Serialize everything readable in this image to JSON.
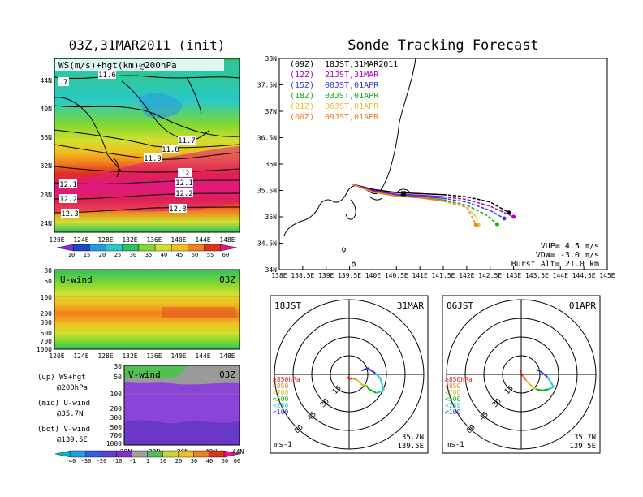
{
  "titles": {
    "left": "03Z,31MAR2011 (init)",
    "right": "Sonde Tracking Forecast"
  },
  "panel_ws": {
    "label": "WS(m/s)+hgt(km)@200hPa",
    "ylabels": [
      "44N",
      "40N",
      "36N",
      "32N",
      "28N",
      "24N"
    ],
    "xlabels": [
      "120E",
      "124E",
      "128E",
      "132E",
      "136E",
      "140E",
      "144E",
      "148E"
    ],
    "contours": [
      "11.6",
      ".7",
      "11.7",
      "11.8",
      "11.9",
      "12",
      "12.1",
      "12.1",
      "12.2",
      "12.2",
      "12.3",
      "12.3"
    ]
  },
  "colorbar_ws": {
    "labels": [
      "10",
      "15",
      "20",
      "25",
      "30",
      "35",
      "40",
      "45",
      "50",
      "55",
      "60"
    ]
  },
  "panel_u": {
    "label": "U-wind",
    "time": "03Z",
    "ylabels": [
      "30",
      "50",
      "100",
      "200",
      "300",
      "500",
      "700",
      "1000"
    ],
    "xlabels": [
      "120E",
      "124E",
      "128E",
      "132E",
      "136E",
      "140E",
      "144E",
      "148E"
    ]
  },
  "panel_v": {
    "label": "V-wind",
    "time": "03Z",
    "ylabels": [
      "30",
      "50",
      "100",
      "200",
      "300",
      "500",
      "700",
      "1000"
    ],
    "xlabels": [
      "28N",
      "32N",
      "36N",
      "40N",
      "44N"
    ]
  },
  "colorbar_v": {
    "labels": [
      "-40",
      "-30",
      "-20",
      "-10",
      "-1",
      "1",
      "10",
      "20",
      "30",
      "40",
      "50",
      "60"
    ]
  },
  "notes": [
    {
      "a": "(up) WS+hgt",
      "b": "@200hPa"
    },
    {
      "a": "(mid) U-wind",
      "b": "@35.7N"
    },
    {
      "a": "(bot) V-wind",
      "b": "@139.5E"
    }
  ],
  "track_map": {
    "ylabels": [
      "38N",
      "37.5N",
      "37N",
      "36.5N",
      "36N",
      "35.5N",
      "35N",
      "34.5N",
      "34N"
    ],
    "xlabels": [
      "138E",
      "138.5E",
      "139E",
      "139.5E",
      "140E",
      "140.5E",
      "141E",
      "141.5E",
      "142E",
      "142.5E",
      "143E",
      "143.5E",
      "144E",
      "144.5E",
      "145E"
    ],
    "legend": [
      {
        "z": "(09Z)",
        "t": "18JST,31MAR2011",
        "color": "#000000"
      },
      {
        "z": "(12Z)",
        "t": "21JST,31MAR",
        "color": "#b000c8"
      },
      {
        "z": "(15Z)",
        "t": "00JST,01APR",
        "color": "#3a3ae0"
      },
      {
        "z": "(18Z)",
        "t": "03JST,01APR",
        "color": "#10b010"
      },
      {
        "z": "(21Z)",
        "t": "06JST,01APR",
        "color": "#f0c020"
      },
      {
        "z": "(00Z)",
        "t": "09JST,01APR",
        "color": "#f08020"
      }
    ],
    "info": [
      "VUP= 4.5 m/s",
      "VDW= -3.0 m/s",
      "Burst Alt= 21.0 km"
    ]
  },
  "hodo1": {
    "left": "18JST",
    "right": "31MAR",
    "units": "ms-1",
    "lat": "35.7N",
    "lon": "139.5E"
  },
  "hodo2": {
    "left": "06JST",
    "right": "01APR",
    "units": "ms-1",
    "lat": "35.7N",
    "lon": "139.5E"
  },
  "hodo_legend": [
    "≥850hPa",
    "<850",
    "<700",
    "<500",
    "<250",
    "<100"
  ],
  "hodo_rings": [
    "15",
    "30",
    "45",
    "60"
  ],
  "colors": {
    "ws_scale": [
      "#8a2be2",
      "#1e46c8",
      "#2898e0",
      "#28c8c8",
      "#30c060",
      "#80d830",
      "#d0e030",
      "#f0c020",
      "#f08020",
      "#e03020",
      "#e01880"
    ],
    "v_scale": [
      "#00b4c8",
      "#1ea0e0",
      "#3060e0",
      "#6040c8",
      "#8030c8",
      "#a0a0a0",
      "#50c050",
      "#c8d830",
      "#f0c020",
      "#f08020",
      "#e03020",
      "#e01880"
    ]
  },
  "chart_data": [
    {
      "type": "line",
      "x_unit": "degE",
      "y_unit": "degN",
      "xlim": [
        138,
        145
      ],
      "ylim": [
        34,
        38
      ],
      "series": [
        {
          "name": "(09Z)",
          "x": [
            139.55,
            140.0,
            140.5,
            141.0,
            141.5,
            142.0,
            142.5,
            142.9
          ],
          "y": [
            35.62,
            35.52,
            35.46,
            35.44,
            35.42,
            35.38,
            35.28,
            35.08
          ]
        },
        {
          "name": "(12Z)",
          "x": [
            139.55,
            140.0,
            140.5,
            141.0,
            141.5,
            142.0,
            142.5,
            143.0
          ],
          "y": [
            35.62,
            35.5,
            35.43,
            35.41,
            35.38,
            35.33,
            35.2,
            35.0
          ]
        },
        {
          "name": "(15Z)",
          "x": [
            139.55,
            140.0,
            140.5,
            141.0,
            141.5,
            142.0,
            142.5,
            142.8
          ],
          "y": [
            35.62,
            35.48,
            35.41,
            35.39,
            35.35,
            35.28,
            35.12,
            34.97
          ]
        },
        {
          "name": "(18Z)",
          "x": [
            139.55,
            140.0,
            140.5,
            141.0,
            141.5,
            142.0,
            142.4,
            142.65
          ],
          "y": [
            35.62,
            35.47,
            35.4,
            35.37,
            35.32,
            35.22,
            35.05,
            34.86
          ]
        },
        {
          "name": "(21Z)",
          "x": [
            139.55,
            140.0,
            140.5,
            141.0,
            141.5,
            142.0,
            142.2,
            142.25
          ],
          "y": [
            35.62,
            35.47,
            35.39,
            35.36,
            35.3,
            35.18,
            35.0,
            34.85
          ]
        },
        {
          "name": "(00Z)",
          "x": [
            139.55,
            140.0,
            140.5,
            141.0,
            141.5,
            142.0,
            142.1,
            142.2
          ],
          "y": [
            35.62,
            35.47,
            35.39,
            35.36,
            35.3,
            35.18,
            35.02,
            34.85
          ]
        }
      ]
    },
    {
      "type": "line",
      "name": "hodograph 18JST 31MAR",
      "x_unit": "m/s",
      "y_unit": "m/s",
      "rings": [
        15,
        30,
        45,
        60
      ],
      "series": [
        {
          "level": "≥850hPa",
          "u": [
            -1,
            0,
            2
          ],
          "v": [
            -2,
            -4,
            -3
          ]
        },
        {
          "level": "<850",
          "u": [
            2,
            6
          ],
          "v": [
            -3,
            -4
          ]
        },
        {
          "level": "<700",
          "u": [
            6,
            10,
            14
          ],
          "v": [
            -4,
            -8,
            -9
          ]
        },
        {
          "level": "<500",
          "u": [
            14,
            16,
            22
          ],
          "v": [
            -9,
            -12,
            -15
          ]
        },
        {
          "level": "<250",
          "u": [
            22,
            28,
            25,
            21
          ],
          "v": [
            -15,
            -13,
            -3,
            1
          ]
        },
        {
          "level": "<100",
          "u": [
            21,
            15,
            10
          ],
          "v": [
            1,
            5,
            3
          ]
        }
      ]
    },
    {
      "type": "line",
      "name": "hodograph 06JST 01APR",
      "x_unit": "m/s",
      "y_unit": "m/s",
      "rings": [
        15,
        30,
        45,
        60
      ],
      "series": [
        {
          "level": "≥850hPa",
          "u": [
            -1,
            0,
            1
          ],
          "v": [
            3,
            1,
            -1
          ]
        },
        {
          "level": "<850",
          "u": [
            1,
            3,
            4
          ],
          "v": [
            -1,
            -3,
            -5
          ]
        },
        {
          "level": "<700",
          "u": [
            4,
            8,
            12
          ],
          "v": [
            -5,
            -9,
            -12
          ]
        },
        {
          "level": "<500",
          "u": [
            12,
            17,
            22
          ],
          "v": [
            -12,
            -13,
            -12
          ]
        },
        {
          "level": "<250",
          "u": [
            22,
            26,
            21
          ],
          "v": [
            -12,
            -10,
            -2
          ]
        },
        {
          "level": "<100",
          "u": [
            21,
            16,
            12
          ],
          "v": [
            -2,
            2,
            4
          ]
        }
      ]
    }
  ]
}
